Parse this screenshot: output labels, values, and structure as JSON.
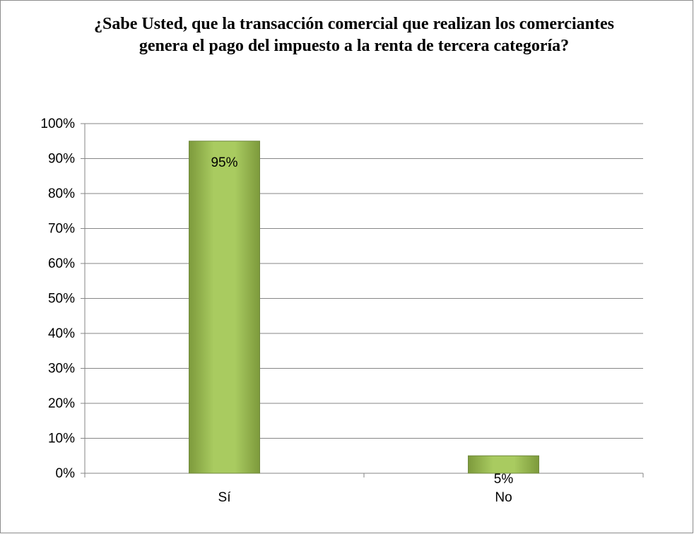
{
  "chart_data": {
    "type": "bar",
    "title": "¿Sabe Usted, que la transacción comercial que realizan los comerciantes genera el pago del impuesto a la renta de tercera categoría?",
    "categories": [
      "Sí",
      "No"
    ],
    "values": [
      95,
      5
    ],
    "data_labels": [
      "95%",
      "5%"
    ],
    "ylim": [
      0,
      100
    ],
    "y_ticks": [
      0,
      10,
      20,
      30,
      40,
      50,
      60,
      70,
      80,
      90,
      100
    ],
    "y_tick_labels": [
      "0%",
      "10%",
      "20%",
      "30%",
      "40%",
      "50%",
      "60%",
      "70%",
      "80%",
      "90%",
      "100%"
    ],
    "xlabel": "",
    "ylabel": "",
    "grid": true,
    "legend": "none",
    "bar_color": "#9bbb59",
    "bar_edge_color": "#71893f",
    "gridline_color": "#868686"
  }
}
